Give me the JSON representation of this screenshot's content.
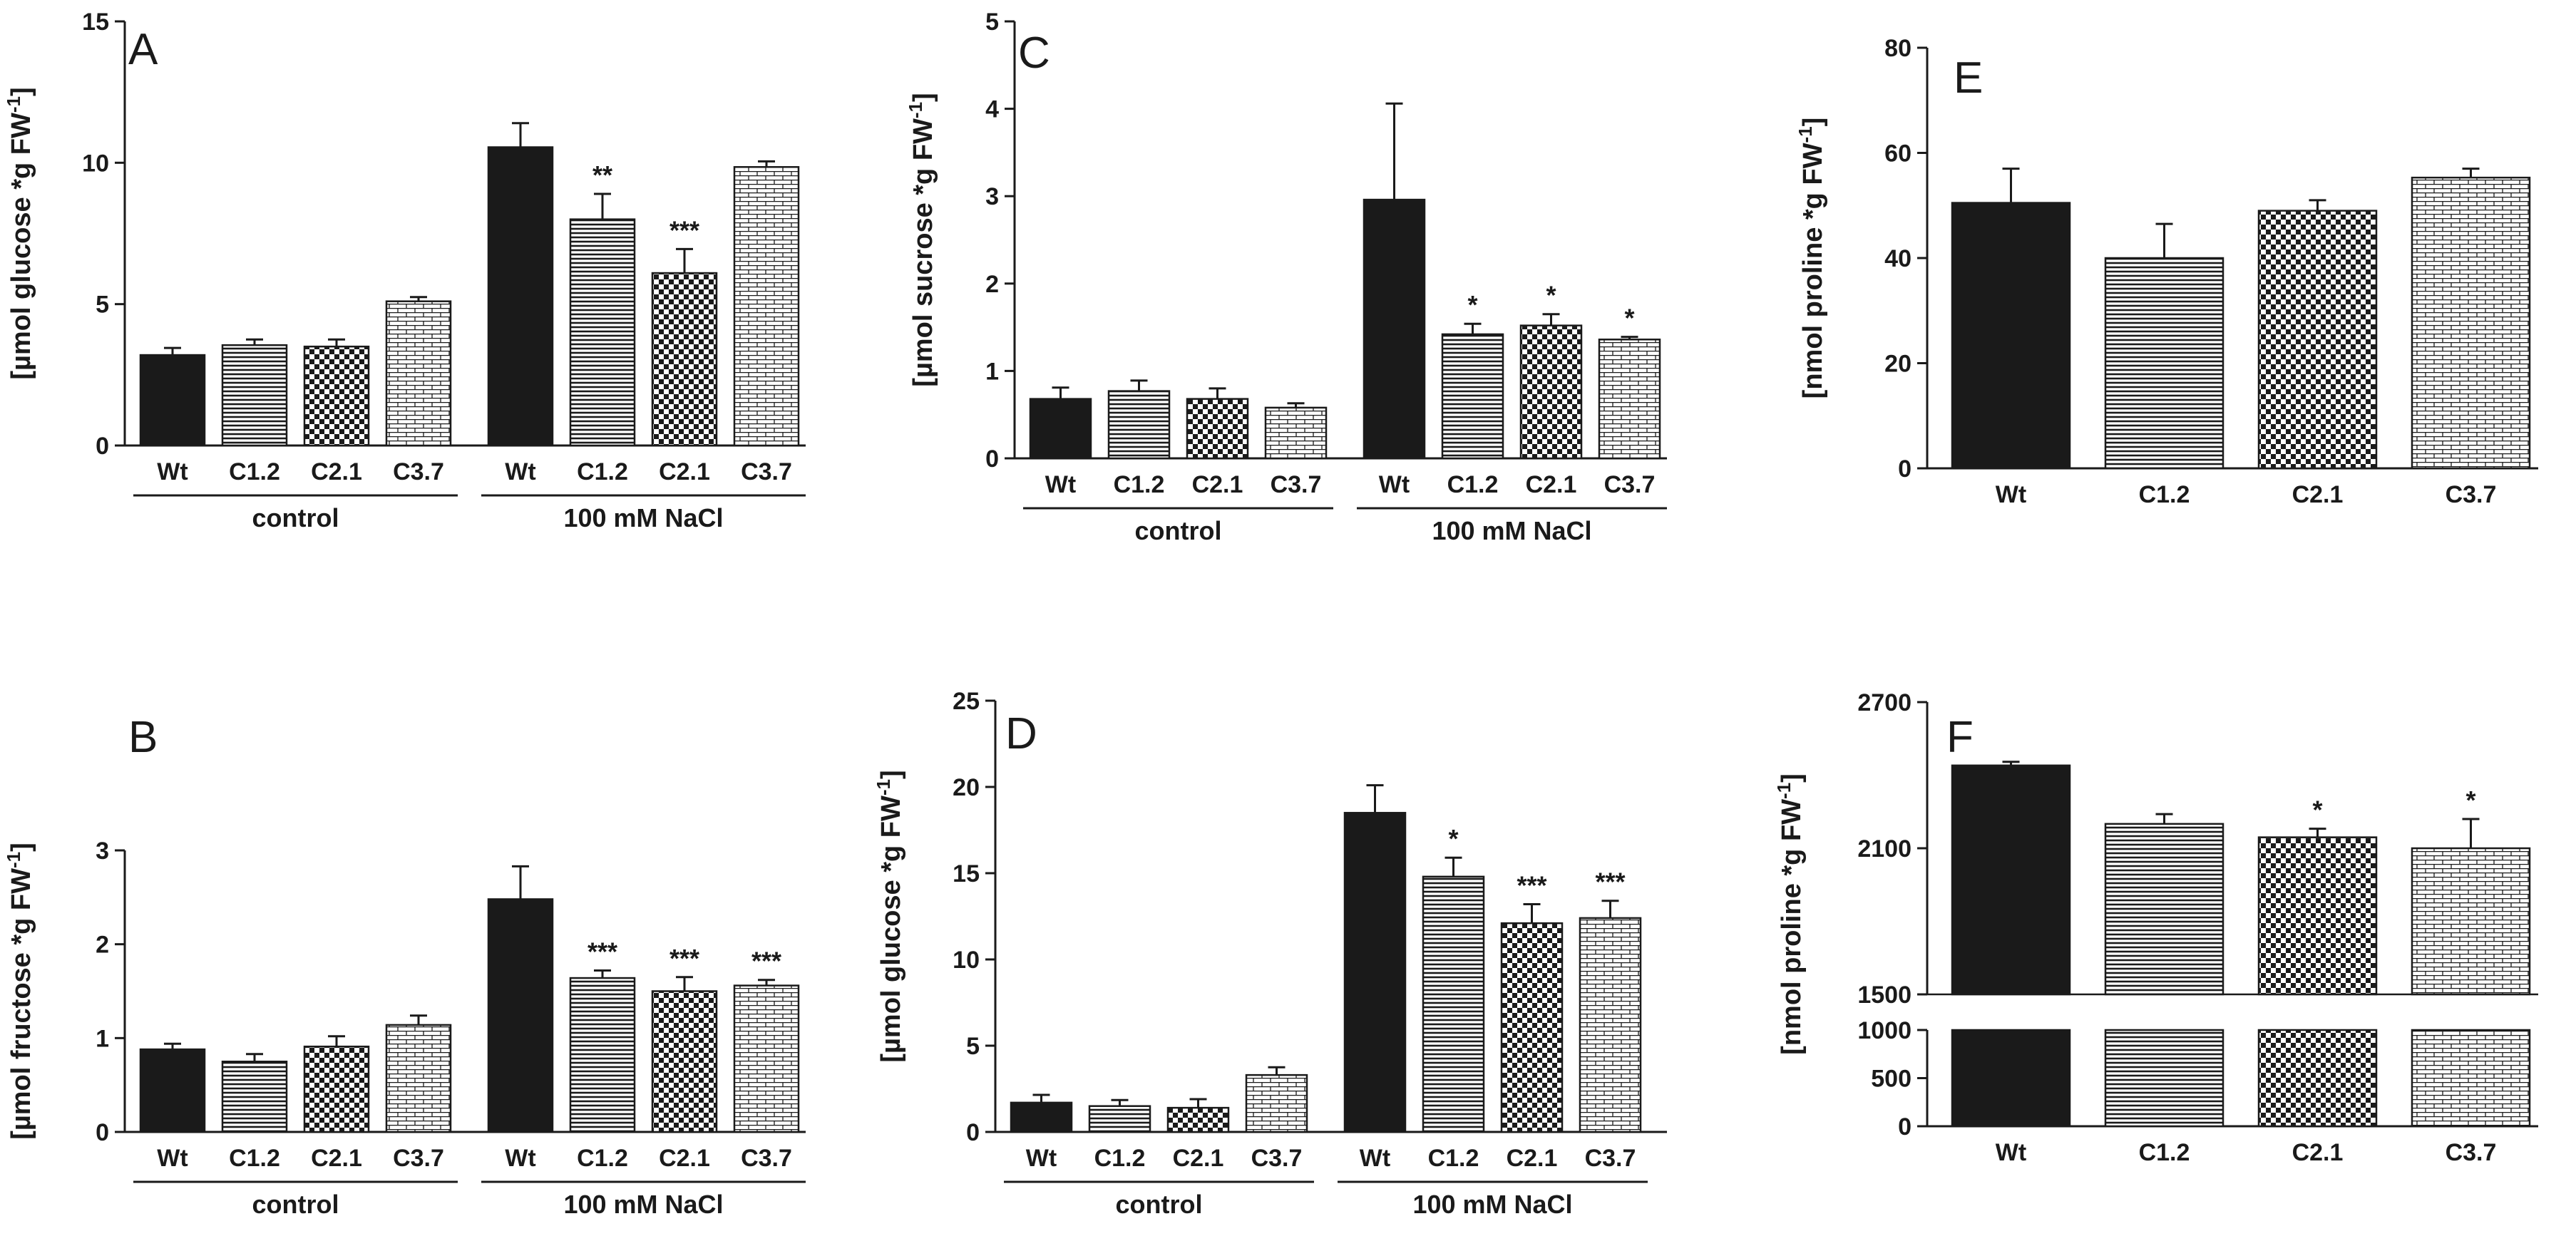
{
  "figure": {
    "background": "#ffffff",
    "bar_color": "#1a1a1a"
  },
  "chart_data": [
    {
      "id": "A",
      "panel_label": "A",
      "type": "bar",
      "ylabel": "[µmol glucose *g FW-1]",
      "ylim": [
        0,
        15
      ],
      "yticks": [
        "0",
        "5",
        "10",
        "15"
      ],
      "categories": [
        "Wt",
        "C1.2",
        "C2.1",
        "C3.7",
        "Wt",
        "C1.2",
        "C2.1",
        "C3.7"
      ],
      "patterns": [
        "solid",
        "hlines",
        "check",
        "brick",
        "solid",
        "hlines",
        "check",
        "brick"
      ],
      "values": [
        3.2,
        3.55,
        3.5,
        5.1,
        10.55,
        8.0,
        6.1,
        9.85
      ],
      "errors": [
        0.25,
        0.2,
        0.25,
        0.15,
        0.85,
        0.9,
        0.85,
        0.2
      ],
      "significance": [
        "",
        "",
        "",
        "",
        "",
        "**",
        "***",
        ""
      ],
      "groups": [
        {
          "label": "control",
          "indices": [
            0,
            3
          ]
        },
        {
          "label": "100 mM NaCl",
          "indices": [
            4,
            7
          ]
        }
      ]
    },
    {
      "id": "B",
      "panel_label": "B",
      "type": "bar",
      "ylabel": "[µmol fructose *g FW-1]",
      "ylim": [
        0,
        3
      ],
      "yticks": [
        "0",
        "1",
        "2",
        "3"
      ],
      "categories": [
        "Wt",
        "C1.2",
        "C2.1",
        "C3.7",
        "Wt",
        "C1.2",
        "C2.1",
        "C3.7"
      ],
      "patterns": [
        "solid",
        "hlines",
        "check",
        "brick",
        "solid",
        "hlines",
        "check",
        "brick"
      ],
      "values": [
        0.88,
        0.75,
        0.91,
        1.14,
        2.48,
        1.64,
        1.5,
        1.56
      ],
      "errors": [
        0.06,
        0.08,
        0.11,
        0.1,
        0.35,
        0.08,
        0.15,
        0.06
      ],
      "significance": [
        "",
        "",
        "",
        "",
        "",
        "***",
        "***",
        "***"
      ],
      "groups": [
        {
          "label": "control",
          "indices": [
            0,
            3
          ]
        },
        {
          "label": "100 mM NaCl",
          "indices": [
            4,
            7
          ]
        }
      ]
    },
    {
      "id": "C",
      "panel_label": "C",
      "type": "bar",
      "ylabel": "[µmol sucrose *g FW-1]",
      "ylim": [
        0,
        5
      ],
      "yticks": [
        "0",
        "1",
        "2",
        "3",
        "4",
        "5"
      ],
      "categories": [
        "Wt",
        "C1.2",
        "C2.1",
        "C3.7",
        "Wt",
        "C1.2",
        "C2.1",
        "C3.7"
      ],
      "patterns": [
        "solid",
        "hlines",
        "check",
        "brick",
        "solid",
        "hlines",
        "check",
        "brick"
      ],
      "values": [
        0.68,
        0.77,
        0.68,
        0.58,
        2.96,
        1.42,
        1.52,
        1.36
      ],
      "errors": [
        0.13,
        0.12,
        0.12,
        0.05,
        1.1,
        0.12,
        0.13,
        0.03
      ],
      "significance": [
        "",
        "",
        "",
        "",
        "",
        "*",
        "*",
        "*"
      ],
      "groups": [
        {
          "label": "control",
          "indices": [
            0,
            3
          ]
        },
        {
          "label": "100 mM NaCl",
          "indices": [
            4,
            7
          ]
        }
      ]
    },
    {
      "id": "D",
      "panel_label": "D",
      "type": "bar",
      "ylabel": "[µmol glucose *g FW-1]",
      "ylim": [
        0,
        25
      ],
      "yticks": [
        "0",
        "5",
        "10",
        "15",
        "20",
        "25"
      ],
      "categories": [
        "Wt",
        "C1.2",
        "C2.1",
        "C3.7",
        "Wt",
        "C1.2",
        "C2.1",
        "C3.7"
      ],
      "patterns": [
        "solid",
        "hlines",
        "check",
        "brick",
        "solid",
        "hlines",
        "check",
        "brick"
      ],
      "values": [
        1.7,
        1.5,
        1.4,
        3.3,
        18.5,
        14.8,
        12.1,
        12.4
      ],
      "errors": [
        0.45,
        0.35,
        0.5,
        0.45,
        1.6,
        1.1,
        1.1,
        1.0
      ],
      "significance": [
        "",
        "",
        "",
        "",
        "",
        "*",
        "***",
        "***"
      ],
      "groups": [
        {
          "label": "control",
          "indices": [
            0,
            3
          ]
        },
        {
          "label": "100 mM NaCl",
          "indices": [
            4,
            7
          ]
        }
      ]
    },
    {
      "id": "E",
      "panel_label": "E",
      "type": "bar",
      "ylabel": "[nmol proline *g FW-1]",
      "ylim": [
        0,
        80
      ],
      "yticks": [
        "0",
        "20",
        "40",
        "60",
        "80"
      ],
      "categories": [
        "Wt",
        "C1.2",
        "C2.1",
        "C3.7"
      ],
      "patterns": [
        "solid",
        "hlines",
        "check",
        "brick"
      ],
      "values": [
        50.5,
        40.0,
        49.0,
        55.3
      ],
      "errors": [
        6.5,
        6.5,
        2.0,
        1.7
      ],
      "significance": [
        "",
        "",
        "",
        ""
      ],
      "groups": []
    },
    {
      "id": "F",
      "panel_label": "F",
      "type": "bar",
      "ylabel": "[nmol proline *g FW-1]",
      "axis_break": {
        "lower": [
          0,
          1000
        ],
        "upper": [
          1500,
          2700
        ]
      },
      "yticks_lower": [
        "0",
        "500",
        "1000"
      ],
      "yticks_upper": [
        "1500",
        "2100",
        "2700"
      ],
      "categories": [
        "Wt",
        "C1.2",
        "C2.1",
        "C3.7"
      ],
      "patterns": [
        "solid",
        "hlines",
        "check",
        "brick"
      ],
      "values": [
        2440,
        2200,
        2145,
        2100
      ],
      "errors": [
        15,
        40,
        35,
        120
      ],
      "significance": [
        "",
        "",
        "*",
        "*"
      ],
      "groups": []
    }
  ]
}
